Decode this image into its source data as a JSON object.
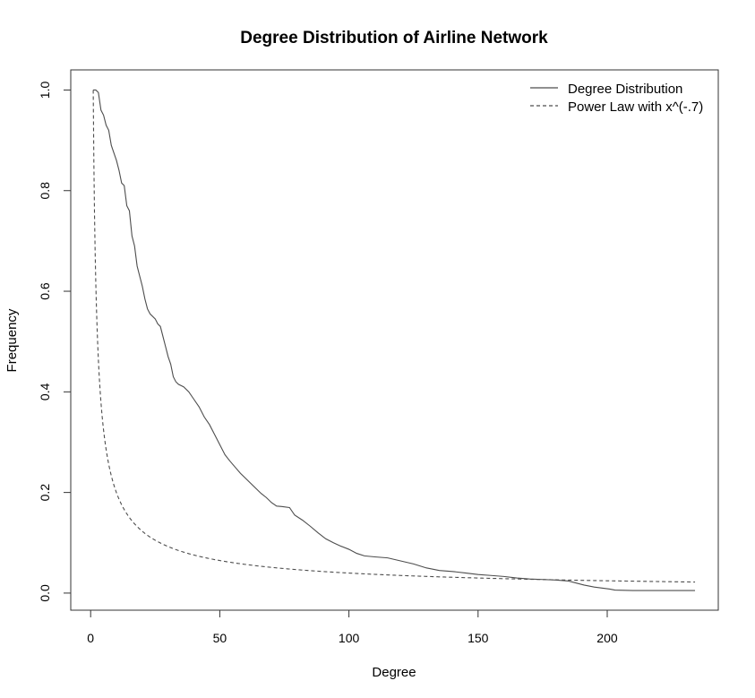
{
  "chart_data": {
    "type": "line",
    "title": "Degree Distribution of Airline Network",
    "xlabel": "Degree",
    "ylabel": "Frequency",
    "xlim": [
      -7.7,
      243
    ],
    "ylim": [
      -0.034,
      1.04
    ],
    "x_ticks": [
      0,
      50,
      100,
      150,
      200
    ],
    "y_ticks": [
      0.0,
      0.2,
      0.4,
      0.6,
      0.8,
      1.0
    ],
    "y_tick_labels": [
      "0.0",
      "0.2",
      "0.4",
      "0.6",
      "0.8",
      "1.0"
    ],
    "grid": false,
    "legend_position": "top-right",
    "series": [
      {
        "name": "Degree Distribution",
        "line_style": "solid",
        "color": "#4d4d4d",
        "points": [
          [
            1,
            1.0
          ],
          [
            2,
            1.0
          ],
          [
            3,
            0.995
          ],
          [
            4,
            0.96
          ],
          [
            5,
            0.95
          ],
          [
            6,
            0.93
          ],
          [
            7,
            0.92
          ],
          [
            8,
            0.89
          ],
          [
            9,
            0.875
          ],
          [
            10,
            0.86
          ],
          [
            11,
            0.84
          ],
          [
            12,
            0.815
          ],
          [
            13,
            0.81
          ],
          [
            14,
            0.77
          ],
          [
            15,
            0.76
          ],
          [
            16,
            0.71
          ],
          [
            17,
            0.69
          ],
          [
            18,
            0.65
          ],
          [
            19,
            0.63
          ],
          [
            20,
            0.61
          ],
          [
            21,
            0.585
          ],
          [
            22,
            0.565
          ],
          [
            23,
            0.555
          ],
          [
            25,
            0.545
          ],
          [
            26,
            0.535
          ],
          [
            27,
            0.53
          ],
          [
            28,
            0.51
          ],
          [
            29,
            0.49
          ],
          [
            30,
            0.47
          ],
          [
            31,
            0.455
          ],
          [
            32,
            0.43
          ],
          [
            33,
            0.42
          ],
          [
            34,
            0.415
          ],
          [
            36,
            0.41
          ],
          [
            38,
            0.4
          ],
          [
            40,
            0.385
          ],
          [
            42,
            0.37
          ],
          [
            44,
            0.35
          ],
          [
            46,
            0.335
          ],
          [
            48,
            0.315
          ],
          [
            50,
            0.295
          ],
          [
            52,
            0.275
          ],
          [
            54,
            0.262
          ],
          [
            56,
            0.25
          ],
          [
            58,
            0.238
          ],
          [
            60,
            0.228
          ],
          [
            62,
            0.218
          ],
          [
            64,
            0.208
          ],
          [
            66,
            0.198
          ],
          [
            68,
            0.19
          ],
          [
            70,
            0.18
          ],
          [
            72,
            0.173
          ],
          [
            74,
            0.172
          ],
          [
            77,
            0.17
          ],
          [
            79,
            0.155
          ],
          [
            82,
            0.145
          ],
          [
            85,
            0.133
          ],
          [
            88,
            0.12
          ],
          [
            91,
            0.108
          ],
          [
            94,
            0.1
          ],
          [
            97,
            0.093
          ],
          [
            100,
            0.087
          ],
          [
            103,
            0.079
          ],
          [
            106,
            0.074
          ],
          [
            110,
            0.072
          ],
          [
            115,
            0.07
          ],
          [
            120,
            0.064
          ],
          [
            125,
            0.058
          ],
          [
            130,
            0.05
          ],
          [
            135,
            0.045
          ],
          [
            140,
            0.043
          ],
          [
            145,
            0.04
          ],
          [
            150,
            0.037
          ],
          [
            155,
            0.035
          ],
          [
            160,
            0.033
          ],
          [
            165,
            0.03
          ],
          [
            170,
            0.028
          ],
          [
            175,
            0.027
          ],
          [
            180,
            0.026
          ],
          [
            185,
            0.024
          ],
          [
            188,
            0.02
          ],
          [
            191,
            0.016
          ],
          [
            195,
            0.012
          ],
          [
            198,
            0.01
          ],
          [
            201,
            0.008
          ],
          [
            203,
            0.006
          ],
          [
            210,
            0.005
          ],
          [
            234,
            0.005
          ]
        ]
      },
      {
        "name": "Power Law with x^(-.7)",
        "line_style": "dashed",
        "color": "#4d4d4d",
        "function": "x^(-0.7)",
        "x_range": [
          1,
          234
        ]
      }
    ]
  }
}
